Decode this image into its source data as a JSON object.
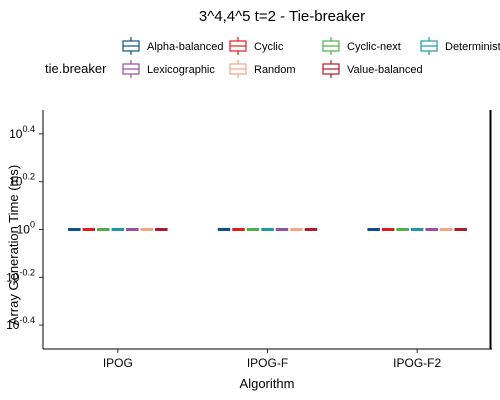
{
  "chart_data": {
    "type": "box",
    "title": "3^4,4^5 t=2 - Tie-breaker",
    "xlabel": "Algorithm",
    "ylabel": "Array Generation Time (ms)",
    "y_scale": "log10",
    "ylim_log10": [
      -0.5,
      0.5
    ],
    "y_ticks": [
      {
        "log10": -0.4,
        "base": "10",
        "exp": "-0.4"
      },
      {
        "log10": -0.2,
        "base": "10",
        "exp": "-0.2"
      },
      {
        "log10": 0,
        "base": "10",
        "exp": "0"
      },
      {
        "log10": 0.2,
        "base": "10",
        "exp": "0.2"
      },
      {
        "log10": 0.4,
        "base": "10",
        "exp": "0.4"
      }
    ],
    "categories": [
      "IPOG",
      "IPOG-F",
      "IPOG-F2"
    ],
    "legend": {
      "title": "tie.breaker",
      "position": "top"
    },
    "series": [
      {
        "name": "Alpha-balanced",
        "color": "#0b4f8c",
        "values": [
          1,
          1,
          1
        ]
      },
      {
        "name": "Cyclic",
        "color": "#e41a1c",
        "values": [
          1,
          1,
          1
        ]
      },
      {
        "name": "Cyclic-next",
        "color": "#4daf4a",
        "values": [
          1,
          1,
          1
        ]
      },
      {
        "name": "Deterministic",
        "color": "#1c98a6",
        "values": [
          1,
          1,
          1
        ]
      },
      {
        "name": "Lexicographic",
        "color": "#984ea3",
        "values": [
          1,
          1,
          1
        ]
      },
      {
        "name": "Random",
        "color": "#f4a582",
        "values": [
          1,
          1,
          1
        ]
      },
      {
        "name": "Value-balanced",
        "color": "#b2182b",
        "values": [
          1,
          1,
          1
        ]
      }
    ],
    "grid": false
  }
}
